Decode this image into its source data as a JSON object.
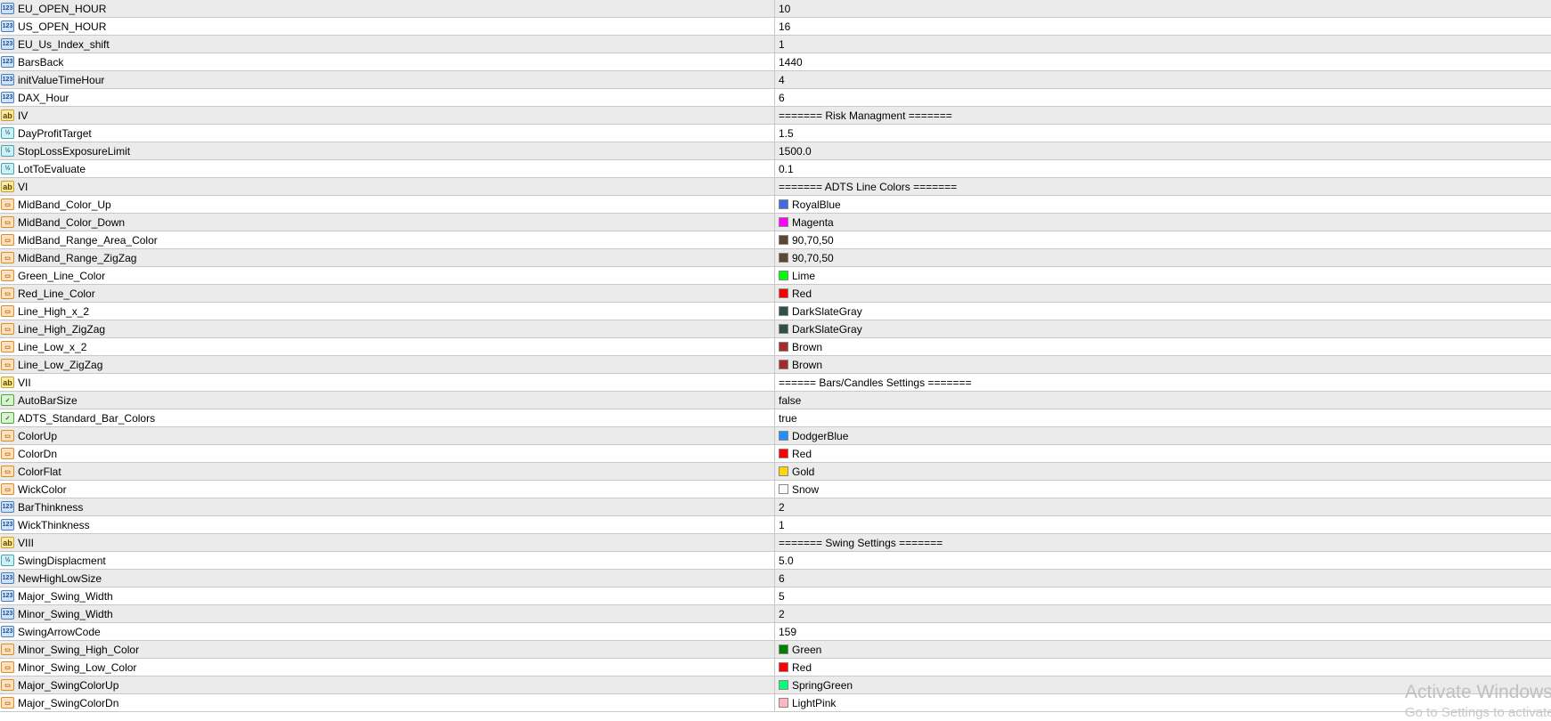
{
  "rows": [
    {
      "type": "int",
      "name": "EU_OPEN_HOUR",
      "value": "10"
    },
    {
      "type": "int",
      "name": "US_OPEN_HOUR",
      "value": "16"
    },
    {
      "type": "int",
      "name": "EU_Us_Index_shift",
      "value": "1"
    },
    {
      "type": "int",
      "name": "BarsBack",
      "value": "1440"
    },
    {
      "type": "int",
      "name": "initValueTimeHour",
      "value": "4"
    },
    {
      "type": "int",
      "name": "DAX_Hour",
      "value": "6"
    },
    {
      "type": "str",
      "name": "IV",
      "value": "======= Risk Managment  ======="
    },
    {
      "type": "dbl",
      "name": "DayProfitTarget",
      "value": "1.5"
    },
    {
      "type": "dbl",
      "name": "StopLossExposureLimit",
      "value": "1500.0"
    },
    {
      "type": "dbl",
      "name": "LotToEvaluate",
      "value": "0.1"
    },
    {
      "type": "str",
      "name": "VI",
      "value": "======= ADTS Line Colors ======="
    },
    {
      "type": "col",
      "name": "MidBand_Color_Up",
      "value": "RoyalBlue",
      "color": "#4169e1"
    },
    {
      "type": "col",
      "name": "MidBand_Color_Down",
      "value": "Magenta",
      "color": "#ff00ff"
    },
    {
      "type": "col",
      "name": "MidBand_Range_Area_Color",
      "value": "90,70,50",
      "color": "#5a4632"
    },
    {
      "type": "col",
      "name": "MidBand_Range_ZigZag",
      "value": "90,70,50",
      "color": "#5a4632"
    },
    {
      "type": "col",
      "name": "Green_Line_Color",
      "value": "Lime",
      "color": "#00ff00"
    },
    {
      "type": "col",
      "name": "Red_Line_Color",
      "value": "Red",
      "color": "#ff0000"
    },
    {
      "type": "col",
      "name": "Line_High_x_2",
      "value": "DarkSlateGray",
      "color": "#2f4f4f"
    },
    {
      "type": "col",
      "name": "Line_High_ZigZag",
      "value": "DarkSlateGray",
      "color": "#2f4f4f"
    },
    {
      "type": "col",
      "name": "Line_Low_x_2",
      "value": "Brown",
      "color": "#a52a2a"
    },
    {
      "type": "col",
      "name": "Line_Low_ZigZag",
      "value": "Brown",
      "color": "#a52a2a"
    },
    {
      "type": "str",
      "name": "VII",
      "value": "====== Bars/Candles Settings ======="
    },
    {
      "type": "bool",
      "name": "AutoBarSize",
      "value": "false"
    },
    {
      "type": "bool",
      "name": "ADTS_Standard_Bar_Colors",
      "value": "true"
    },
    {
      "type": "col",
      "name": "ColorUp",
      "value": "DodgerBlue",
      "color": "#1e90ff"
    },
    {
      "type": "col",
      "name": "ColorDn",
      "value": "Red",
      "color": "#ff0000"
    },
    {
      "type": "col",
      "name": "ColorFlat",
      "value": "Gold",
      "color": "#ffd700"
    },
    {
      "type": "col",
      "name": "WickColor",
      "value": "Snow",
      "color": "#fffafa"
    },
    {
      "type": "int",
      "name": "BarThinkness",
      "value": "2"
    },
    {
      "type": "int",
      "name": "WickThinkness",
      "value": "1"
    },
    {
      "type": "str",
      "name": "VIII",
      "value": "======= Swing Settings ======="
    },
    {
      "type": "dbl",
      "name": "SwingDisplacment",
      "value": "5.0"
    },
    {
      "type": "int",
      "name": "NewHighLowSize",
      "value": "6"
    },
    {
      "type": "int",
      "name": "Major_Swing_Width",
      "value": "5"
    },
    {
      "type": "int",
      "name": "Minor_Swing_Width",
      "value": "2"
    },
    {
      "type": "int",
      "name": "SwingArrowCode",
      "value": "159"
    },
    {
      "type": "col",
      "name": "Minor_Swing_High_Color",
      "value": "Green",
      "color": "#008000"
    },
    {
      "type": "col",
      "name": "Minor_Swing_Low_Color",
      "value": "Red",
      "color": "#ff0000"
    },
    {
      "type": "col",
      "name": "Major_SwingColorUp",
      "value": "SpringGreen",
      "color": "#00ff7f"
    },
    {
      "type": "col",
      "name": "Major_SwingColorDn",
      "value": "LightPink",
      "color": "#ffb6c1"
    }
  ],
  "icons": {
    "int": "123",
    "str": "ab",
    "dbl": "½",
    "col": "▭",
    "bool": "✓"
  },
  "watermark": {
    "title": "Activate Windows",
    "subtitle": "Go to Settings to activate Windows."
  }
}
